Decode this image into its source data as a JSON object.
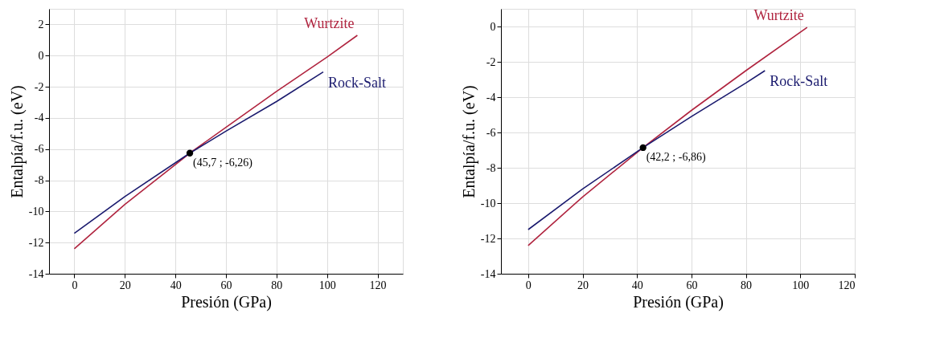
{
  "chart_data": [
    {
      "type": "line",
      "xlabel": "Presión (GPa)",
      "ylabel": "Entalpía/f.u. (eV)",
      "xlim": [
        -10,
        130
      ],
      "ylim": [
        -14,
        3
      ],
      "xticks": [
        0,
        20,
        40,
        60,
        80,
        100,
        120
      ],
      "yticks": [
        -14,
        -12,
        -10,
        -8,
        -6,
        -4,
        -2,
        0,
        2
      ],
      "grid": true,
      "marker": "none",
      "line_style": "solid",
      "series": [
        {
          "name": "Wurtzite",
          "color": "#b0243f",
          "x": [
            0,
            20,
            45.7,
            60,
            80,
            100,
            112
          ],
          "values": [
            -12.4,
            -9.55,
            -6.26,
            -4.6,
            -2.3,
            -0.1,
            1.3
          ]
        },
        {
          "name": "Rock-Salt",
          "color": "#1a1a6e",
          "x": [
            0,
            20,
            45.7,
            60,
            80,
            98.5
          ],
          "values": [
            -11.4,
            -9.05,
            -6.26,
            -4.85,
            -2.95,
            -1.05
          ]
        },
        {
          "type": "scatter",
          "marker": "circle",
          "color": "#000000",
          "x": [
            45.7
          ],
          "values": [
            -6.26
          ]
        }
      ],
      "annotations": [
        {
          "text": "(45,7 ; -6,26)",
          "x": 45.7,
          "y": -6.26
        }
      ]
    },
    {
      "type": "line",
      "xlabel": "Presión (GPa)",
      "ylabel": "Entalpía/f.u. (eV)",
      "xlim": [
        -10,
        120
      ],
      "ylim": [
        -14,
        1
      ],
      "xticks": [
        0,
        20,
        40,
        60,
        80,
        100,
        120
      ],
      "yticks": [
        -14,
        -12,
        -10,
        -8,
        -6,
        -4,
        -2,
        0
      ],
      "grid": true,
      "marker": "none",
      "line_style": "solid",
      "series": [
        {
          "name": "Wurtzite",
          "color": "#b0243f",
          "x": [
            0,
            20,
            42.2,
            60,
            80,
            102.5
          ],
          "values": [
            -12.4,
            -9.65,
            -6.86,
            -4.75,
            -2.5,
            -0.05
          ]
        },
        {
          "name": "Rock-Salt",
          "color": "#1a1a6e",
          "x": [
            0,
            20,
            42.2,
            60,
            80,
            87
          ],
          "values": [
            -11.5,
            -9.2,
            -6.86,
            -5.1,
            -3.2,
            -2.5
          ]
        },
        {
          "type": "scatter",
          "marker": "circle",
          "color": "#000000",
          "x": [
            42.2
          ],
          "values": [
            -6.86
          ]
        }
      ],
      "annotations": [
        {
          "text": "(42,2 ; -6,86)",
          "x": 42.2,
          "y": -6.86
        }
      ]
    }
  ]
}
